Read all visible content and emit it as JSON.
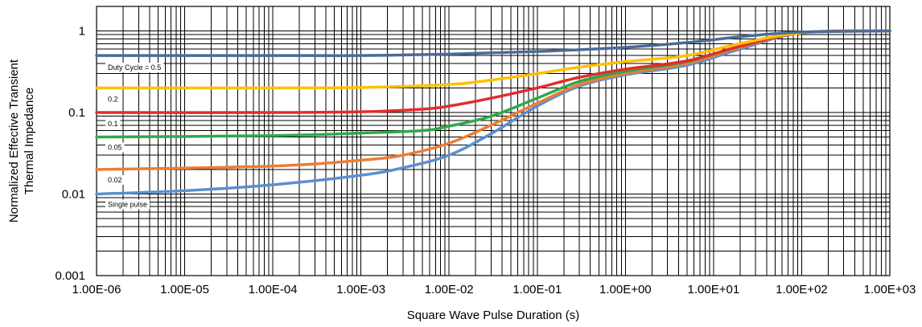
{
  "chart_data": {
    "type": "line",
    "title": "",
    "xlabel": "Square Wave Pulse Duration (s)",
    "ylabel": [
      "Normalized Effective Transient",
      "Thermal Impedance"
    ],
    "xscale": "log",
    "yscale": "log",
    "xlim": [
      1e-06,
      1000
    ],
    "ylim": [
      0.001,
      2
    ],
    "grid": true,
    "x_tick_labels": [
      "1.00E-06",
      "1.00E-05",
      "1.00E-04",
      "1.00E-03",
      "1.00E-02",
      "1.00E-01",
      "1.00E+00",
      "1.00E+01",
      "1.00E+02",
      "1.00E+03"
    ],
    "y_tick_labels": [
      "0.001",
      "0.01",
      "0.1",
      "1"
    ],
    "series": [
      {
        "name": "Duty Cycle = 0.5",
        "color": "#4a6a9a",
        "points": [
          [
            1e-06,
            0.5
          ],
          [
            0.0001,
            0.5
          ],
          [
            0.001,
            0.5
          ],
          [
            0.01,
            0.52
          ],
          [
            0.1,
            0.56
          ],
          [
            1,
            0.63
          ],
          [
            5,
            0.72
          ],
          [
            20,
            0.85
          ],
          [
            100,
            0.97
          ],
          [
            1000,
            1.0
          ]
        ]
      },
      {
        "name": "0.2",
        "color": "#ffc000",
        "points": [
          [
            1e-06,
            0.2
          ],
          [
            0.0001,
            0.2
          ],
          [
            0.001,
            0.203
          ],
          [
            0.01,
            0.22
          ],
          [
            0.03,
            0.25
          ],
          [
            0.1,
            0.3
          ],
          [
            0.3,
            0.36
          ],
          [
            1,
            0.42
          ],
          [
            5,
            0.5
          ],
          [
            20,
            0.7
          ],
          [
            100,
            0.95
          ],
          [
            1000,
            1.0
          ]
        ]
      },
      {
        "name": "0.1",
        "color": "#e52b2b",
        "points": [
          [
            1e-06,
            0.1
          ],
          [
            0.0001,
            0.1
          ],
          [
            0.001,
            0.102
          ],
          [
            0.005,
            0.11
          ],
          [
            0.01,
            0.12
          ],
          [
            0.03,
            0.15
          ],
          [
            0.1,
            0.2
          ],
          [
            0.3,
            0.27
          ],
          [
            1,
            0.34
          ],
          [
            5,
            0.43
          ],
          [
            20,
            0.65
          ],
          [
            100,
            0.95
          ],
          [
            1000,
            1.0
          ]
        ]
      },
      {
        "name": "0.05",
        "color": "#2ea84c",
        "points": [
          [
            1e-06,
            0.05
          ],
          [
            0.0001,
            0.052
          ],
          [
            0.001,
            0.056
          ],
          [
            0.005,
            0.06
          ],
          [
            0.01,
            0.068
          ],
          [
            0.03,
            0.09
          ],
          [
            0.1,
            0.15
          ],
          [
            0.3,
            0.24
          ],
          [
            1,
            0.32
          ],
          [
            5,
            0.42
          ],
          [
            20,
            0.65
          ],
          [
            100,
            0.95
          ],
          [
            1000,
            1.0
          ]
        ]
      },
      {
        "name": "0.02",
        "color": "#ed7d31",
        "points": [
          [
            1e-06,
            0.02
          ],
          [
            0.0001,
            0.022
          ],
          [
            0.001,
            0.026
          ],
          [
            0.003,
            0.03
          ],
          [
            0.01,
            0.042
          ],
          [
            0.03,
            0.07
          ],
          [
            0.1,
            0.13
          ],
          [
            0.3,
            0.22
          ],
          [
            1,
            0.3
          ],
          [
            5,
            0.4
          ],
          [
            20,
            0.63
          ],
          [
            100,
            0.95
          ],
          [
            1000,
            1.0
          ]
        ]
      },
      {
        "name": "Single pulse",
        "color": "#5b8fd0",
        "points": [
          [
            1e-06,
            0.01
          ],
          [
            1e-05,
            0.011
          ],
          [
            0.0001,
            0.013
          ],
          [
            0.001,
            0.017
          ],
          [
            0.003,
            0.021
          ],
          [
            0.01,
            0.03
          ],
          [
            0.03,
            0.055
          ],
          [
            0.1,
            0.12
          ],
          [
            0.3,
            0.21
          ],
          [
            1,
            0.29
          ],
          [
            5,
            0.38
          ],
          [
            20,
            0.6
          ],
          [
            100,
            0.95
          ],
          [
            1000,
            1.0
          ]
        ]
      }
    ]
  }
}
